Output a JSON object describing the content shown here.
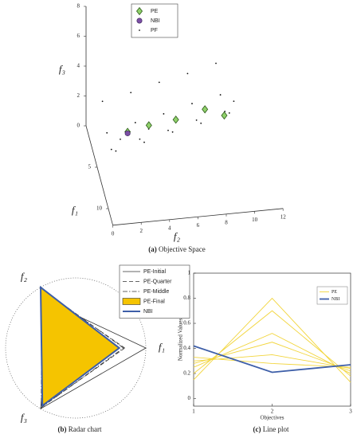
{
  "chart_data": [
    {
      "type": "scatter3d",
      "caption_label": "(a)",
      "caption": "Objective Space",
      "xlabel": "f₂",
      "ylabel": "f₃",
      "zlabel": "f₁",
      "xlim": [
        0,
        12
      ],
      "ylim": [
        0,
        8
      ],
      "zlim": [
        0,
        12
      ],
      "xticks": [
        0,
        2,
        4,
        6,
        8,
        10,
        12
      ],
      "yticks": [
        0,
        2,
        4,
        6,
        8
      ],
      "zticks": [
        5,
        10
      ],
      "legend": "top",
      "series": [
        {
          "name": "PE",
          "color": "#8fd16a",
          "marker": "diamond",
          "x": [
            2.3,
            3.8,
            5.7,
            7.75,
            8.8
          ],
          "y": [
            1.6,
            1.9,
            2.1,
            2.6,
            3.2
          ],
          "z": [
            4,
            4,
            4,
            4,
            6
          ]
        },
        {
          "name": "NBI",
          "color": "#7b4fa5",
          "marker": "circle",
          "x": [
            2.3
          ],
          "y": [
            1.5
          ],
          "z": [
            4
          ]
        },
        {
          "name": "PF",
          "color": "#111111",
          "marker": "dot",
          "x": [
            1,
            3,
            5,
            7,
            9,
            1,
            3,
            5,
            7,
            9,
            1,
            3,
            5,
            7,
            9,
            1,
            3,
            5,
            7,
            9,
            1,
            3,
            5,
            7,
            9
          ],
          "y": [
            2.1,
            2.5,
            3.0,
            3.4,
            3.9,
            1.1,
            1.6,
            2.0,
            2.5,
            2.9,
            1.1,
            1.6,
            2.0,
            2.5,
            2.9,
            2.1,
            2.5,
            3.0,
            3.4,
            3.9,
            4.0,
            4.5,
            4.9,
            5.3,
            5.8
          ],
          "z": [
            1,
            1,
            1,
            1,
            1,
            3,
            3,
            3,
            3,
            3,
            5,
            5,
            5,
            5,
            5,
            7,
            7,
            7,
            7,
            7,
            9,
            9,
            9,
            9,
            9
          ]
        }
      ]
    },
    {
      "type": "radar",
      "caption_label": "(b)",
      "caption": "Radar chart",
      "axes": [
        "f₁",
        "f₂",
        "f₃"
      ],
      "rlim": [
        0,
        1
      ],
      "legend": "top right",
      "series": [
        {
          "name": "PE-Initial",
          "color": "#333333",
          "dash": "solid",
          "fill": "none",
          "values": [
            1.0,
            0.75,
            1.0
          ]
        },
        {
          "name": "PE-Quarter",
          "color": "#333333",
          "dash": "dashed",
          "fill": "none",
          "values": [
            0.7,
            0.93,
            0.97
          ]
        },
        {
          "name": "PE-Middle",
          "color": "#333333",
          "dash": "dashdot",
          "fill": "none",
          "values": [
            0.68,
            0.98,
            0.98
          ]
        },
        {
          "name": "PE-Final",
          "color": "#333333",
          "dash": "solid",
          "fill": "#f5c400",
          "values": [
            0.63,
            1.0,
            0.95
          ]
        },
        {
          "name": "NBI",
          "color": "#3d5ea8",
          "dash": "solid",
          "fill": "none",
          "values": [
            0.62,
            1.0,
            0.95
          ]
        }
      ]
    },
    {
      "type": "line",
      "caption_label": "(c)",
      "caption": "Line plot",
      "xlabel": "Objectives",
      "ylabel": "Normalized Values",
      "x": [
        1,
        2,
        3
      ],
      "xlim": [
        1,
        3
      ],
      "xticks": [
        1,
        2,
        3
      ],
      "ylim": [
        -0.06,
        1.0
      ],
      "yticks": [
        0,
        0.2,
        0.4,
        0.6,
        0.8,
        1
      ],
      "legend": "top right",
      "series": [
        {
          "name": "PE",
          "color": "#f2d53c",
          "lines": [
            [
              0.15,
              0.8,
              0.13
            ],
            [
              0.2,
              0.7,
              0.18
            ],
            [
              0.25,
              0.52,
              0.2
            ],
            [
              0.28,
              0.45,
              0.22
            ],
            [
              0.3,
              0.35,
              0.24
            ],
            [
              0.33,
              0.28,
              0.25
            ]
          ]
        },
        {
          "name": "NBI",
          "color": "#3d5ea8",
          "values": [
            0.42,
            0.21,
            0.27
          ]
        }
      ]
    }
  ]
}
